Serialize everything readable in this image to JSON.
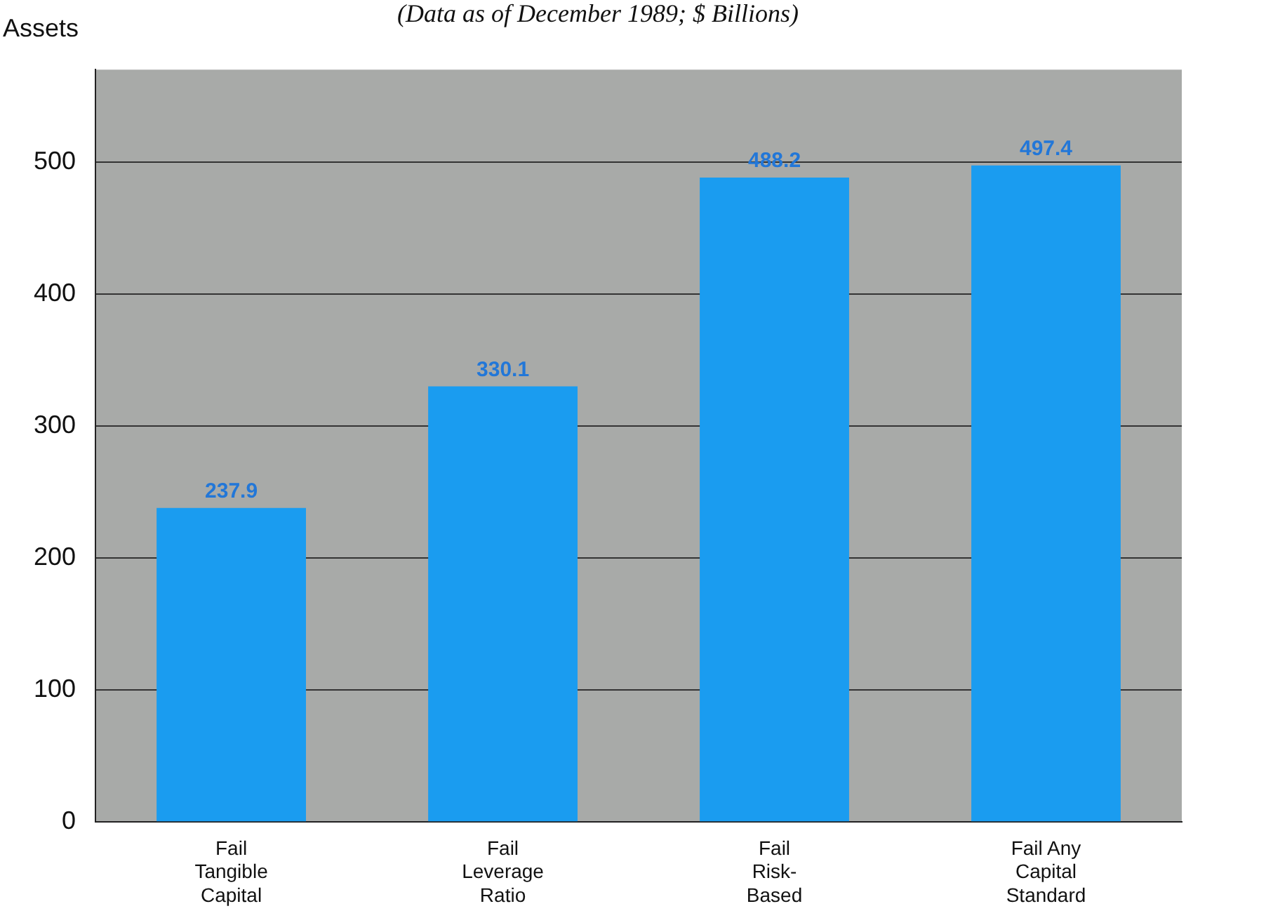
{
  "chart_data": {
    "type": "bar",
    "subtitle": "(Data as of December 1989; $ Billions)",
    "ylabel": "Assets",
    "categories": [
      "Fail\nTangible\nCapital",
      "Fail\nLeverage\nRatio",
      "Fail\nRisk-\nBased",
      "Fail Any\nCapital\nStandard"
    ],
    "values": [
      237.9,
      330.1,
      488.2,
      497.4
    ],
    "color": "#1a9cf0",
    "ylim": [
      0,
      570
    ],
    "yticks": [
      0,
      100,
      200,
      300,
      400,
      500
    ],
    "grid": "y",
    "data_labels": true,
    "legend": false
  }
}
